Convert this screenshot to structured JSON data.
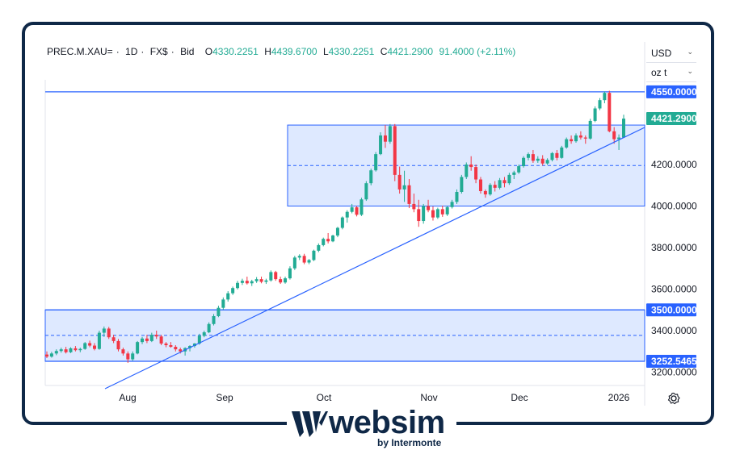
{
  "legend": {
    "symbol": "PREC.M.XAU=",
    "interval": "1D",
    "source": "FX$",
    "price_type": "Bid",
    "open_label": "O",
    "open": "4330.2251",
    "high_label": "H",
    "high": "4439.6700",
    "low_label": "L",
    "low": "4330.2251",
    "close_label": "C",
    "close": "4421.2900",
    "change": "91.4000 (+2.11%)"
  },
  "currency_select": {
    "value": "USD"
  },
  "unit_select": {
    "value": "oz t"
  },
  "branding": {
    "brand": "websim",
    "tagline": "by Intermonte"
  },
  "colors": {
    "up": "#22ab94",
    "down": "#f23645",
    "drawing": "#2962ff",
    "zone_fill": "#d6e3ff",
    "frame": "#0f2847"
  },
  "icons": {
    "settings": "gear-icon",
    "logo": "websim-logo-icon"
  },
  "chart_data": {
    "type": "candlestick",
    "title": "",
    "ylim": [
      3120,
      4620
    ],
    "y_ticks": [
      "3200.0000",
      "3400.0000",
      "3600.0000",
      "3800.0000",
      "4000.0000",
      "4200.0000"
    ],
    "x_ticks": [
      "Aug",
      "Sep",
      "Oct",
      "Nov",
      "Dec",
      "2026"
    ],
    "grid": false,
    "price_labels": [
      {
        "value": "4550.0000",
        "style": "line"
      },
      {
        "value": "4421.2900",
        "style": "last-price"
      },
      {
        "value": "3500.0000",
        "style": "line"
      },
      {
        "value": "3252.5465",
        "style": "line"
      }
    ],
    "horizontal_lines": [
      4550,
      3500,
      3252.5465
    ],
    "zones": [
      {
        "top": 4390,
        "bottom": 4000,
        "mid": 4195
      },
      {
        "top": 3500,
        "bottom": 3252.5465,
        "mid": 3377
      }
    ],
    "trendline": [
      {
        "x": "Aug",
        "y": 3150
      },
      {
        "x": "2026",
        "y": 4360
      }
    ],
    "ohlc": [
      [
        3285,
        3300,
        3268,
        3275
      ],
      [
        3275,
        3298,
        3270,
        3290
      ],
      [
        3290,
        3310,
        3282,
        3302
      ],
      [
        3302,
        3318,
        3294,
        3310
      ],
      [
        3310,
        3322,
        3290,
        3296
      ],
      [
        3296,
        3320,
        3292,
        3315
      ],
      [
        3315,
        3326,
        3300,
        3306
      ],
      [
        3306,
        3318,
        3296,
        3312
      ],
      [
        3312,
        3345,
        3308,
        3340
      ],
      [
        3340,
        3352,
        3320,
        3328
      ],
      [
        3328,
        3340,
        3305,
        3312
      ],
      [
        3312,
        3400,
        3308,
        3390
      ],
      [
        3390,
        3420,
        3370,
        3410
      ],
      [
        3410,
        3418,
        3360,
        3368
      ],
      [
        3368,
        3380,
        3340,
        3350
      ],
      [
        3350,
        3360,
        3300,
        3310
      ],
      [
        3310,
        3318,
        3280,
        3290
      ],
      [
        3290,
        3300,
        3245,
        3262
      ],
      [
        3262,
        3300,
        3255,
        3290
      ],
      [
        3290,
        3350,
        3286,
        3345
      ],
      [
        3345,
        3370,
        3335,
        3362
      ],
      [
        3362,
        3380,
        3340,
        3350
      ],
      [
        3350,
        3390,
        3345,
        3380
      ],
      [
        3380,
        3400,
        3360,
        3372
      ],
      [
        3372,
        3380,
        3330,
        3338
      ],
      [
        3338,
        3345,
        3320,
        3330
      ],
      [
        3330,
        3345,
        3318,
        3322
      ],
      [
        3322,
        3330,
        3300,
        3310
      ],
      [
        3310,
        3318,
        3290,
        3300
      ],
      [
        3300,
        3320,
        3280,
        3316
      ],
      [
        3316,
        3330,
        3300,
        3326
      ],
      [
        3326,
        3340,
        3318,
        3338
      ],
      [
        3338,
        3385,
        3332,
        3375
      ],
      [
        3375,
        3400,
        3368,
        3392
      ],
      [
        3392,
        3440,
        3388,
        3432
      ],
      [
        3432,
        3480,
        3425,
        3470
      ],
      [
        3470,
        3520,
        3465,
        3510
      ],
      [
        3510,
        3560,
        3500,
        3550
      ],
      [
        3550,
        3590,
        3540,
        3580
      ],
      [
        3580,
        3612,
        3572,
        3605
      ],
      [
        3605,
        3640,
        3598,
        3630
      ],
      [
        3630,
        3650,
        3620,
        3640
      ],
      [
        3640,
        3660,
        3622,
        3628
      ],
      [
        3628,
        3645,
        3615,
        3638
      ],
      [
        3638,
        3658,
        3630,
        3648
      ],
      [
        3648,
        3660,
        3628,
        3635
      ],
      [
        3635,
        3650,
        3625,
        3642
      ],
      [
        3642,
        3690,
        3636,
        3682
      ],
      [
        3682,
        3688,
        3640,
        3648
      ],
      [
        3648,
        3660,
        3625,
        3632
      ],
      [
        3632,
        3660,
        3626,
        3652
      ],
      [
        3652,
        3710,
        3646,
        3700
      ],
      [
        3700,
        3760,
        3692,
        3752
      ],
      [
        3752,
        3768,
        3740,
        3760
      ],
      [
        3760,
        3770,
        3720,
        3728
      ],
      [
        3728,
        3745,
        3720,
        3740
      ],
      [
        3740,
        3790,
        3735,
        3785
      ],
      [
        3785,
        3820,
        3778,
        3812
      ],
      [
        3812,
        3848,
        3806,
        3842
      ],
      [
        3842,
        3870,
        3820,
        3830
      ],
      [
        3830,
        3862,
        3826,
        3858
      ],
      [
        3858,
        3900,
        3850,
        3895
      ],
      [
        3895,
        3950,
        3888,
        3945
      ],
      [
        3945,
        3980,
        3920,
        3972
      ],
      [
        3972,
        4010,
        3965,
        3994
      ],
      [
        3994,
        4000,
        3950,
        3958
      ],
      [
        3958,
        4040,
        3952,
        4032
      ],
      [
        4032,
        4120,
        4025,
        4110
      ],
      [
        4110,
        4180,
        4100,
        4172
      ],
      [
        4172,
        4260,
        4166,
        4250
      ],
      [
        4250,
        4355,
        4245,
        4340
      ],
      [
        4340,
        4390,
        4280,
        4310
      ],
      [
        4310,
        4395,
        4300,
        4385
      ],
      [
        4385,
        4395,
        4120,
        4150
      ],
      [
        4150,
        4190,
        4060,
        4080
      ],
      [
        4080,
        4170,
        4020,
        4100
      ],
      [
        4100,
        4130,
        3990,
        4010
      ],
      [
        4010,
        4060,
        3970,
        3985
      ],
      [
        3985,
        4030,
        3900,
        3928
      ],
      [
        3928,
        4010,
        3915,
        4000
      ],
      [
        4000,
        4030,
        3970,
        3980
      ],
      [
        3980,
        3998,
        3930,
        3945
      ],
      [
        3945,
        3992,
        3938,
        3985
      ],
      [
        3985,
        4002,
        3948,
        3960
      ],
      [
        3960,
        4000,
        3952,
        3995
      ],
      [
        3995,
        4030,
        3988,
        4020
      ],
      [
        4020,
        4080,
        4010,
        4068
      ],
      [
        4068,
        4150,
        4060,
        4140
      ],
      [
        4140,
        4210,
        4130,
        4200
      ],
      [
        4200,
        4240,
        4170,
        4188
      ],
      [
        4188,
        4200,
        4110,
        4128
      ],
      [
        4128,
        4140,
        4060,
        4072
      ],
      [
        4072,
        4080,
        4040,
        4056
      ],
      [
        4056,
        4110,
        4050,
        4102
      ],
      [
        4102,
        4120,
        4070,
        4088
      ],
      [
        4088,
        4135,
        4080,
        4125
      ],
      [
        4125,
        4140,
        4090,
        4110
      ],
      [
        4110,
        4160,
        4102,
        4150
      ],
      [
        4150,
        4170,
        4130,
        4162
      ],
      [
        4162,
        4200,
        4155,
        4192
      ],
      [
        4192,
        4240,
        4185,
        4232
      ],
      [
        4232,
        4258,
        4220,
        4250
      ],
      [
        4250,
        4270,
        4208,
        4218
      ],
      [
        4218,
        4240,
        4208,
        4228
      ],
      [
        4228,
        4245,
        4195,
        4205
      ],
      [
        4205,
        4230,
        4198,
        4222
      ],
      [
        4222,
        4260,
        4215,
        4255
      ],
      [
        4255,
        4270,
        4220,
        4232
      ],
      [
        4232,
        4290,
        4228,
        4282
      ],
      [
        4282,
        4330,
        4276,
        4322
      ],
      [
        4322,
        4340,
        4300,
        4312
      ],
      [
        4312,
        4350,
        4305,
        4340
      ],
      [
        4340,
        4360,
        4320,
        4330
      ],
      [
        4330,
        4340,
        4300,
        4325
      ],
      [
        4325,
        4420,
        4320,
        4410
      ],
      [
        4410,
        4480,
        4404,
        4470
      ],
      [
        4470,
        4520,
        4462,
        4510
      ],
      [
        4510,
        4552,
        4495,
        4545
      ],
      [
        4545,
        4555,
        4355,
        4360
      ],
      [
        4360,
        4380,
        4300,
        4322
      ],
      [
        4322,
        4345,
        4270,
        4330
      ],
      [
        4330,
        4440,
        4330,
        4421
      ]
    ]
  }
}
